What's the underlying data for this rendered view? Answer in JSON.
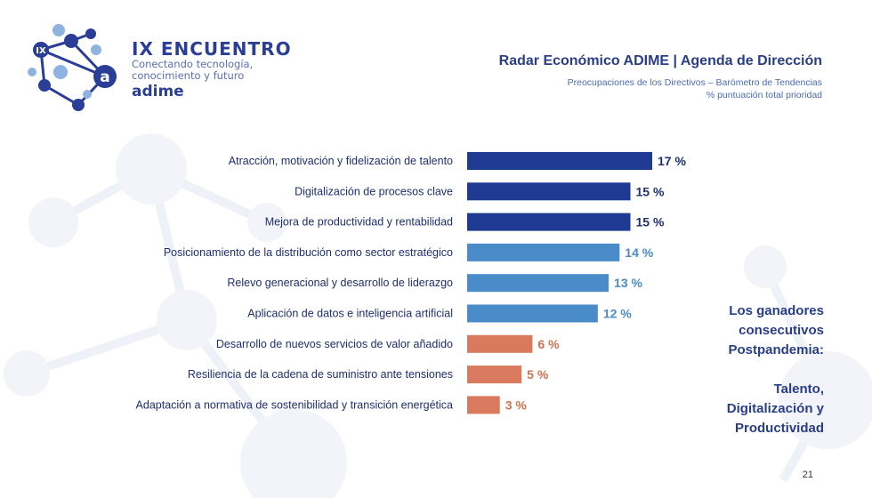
{
  "event": {
    "logo_badge": "IX",
    "logo_letter": "a",
    "title": "IX ENCUENTRO",
    "subtitle_line1": "Conectando tecnología,",
    "subtitle_line2": "conocimiento y futuro",
    "brand": "adime"
  },
  "header": {
    "title": "Radar Económico ADIME | Agenda de Dirección",
    "subtitle_line1": "Preocupaciones de los Directivos – Barómetro de Tendencias",
    "subtitle_line2": "% puntuación total prioridad"
  },
  "chart_data": {
    "type": "bar",
    "orientation": "horizontal",
    "categories": [
      "Atracción, motivación y fidelización de talento",
      "Digitalización de procesos clave",
      "Mejora de productividad y rentabilidad",
      "Posicionamiento de la distribución como sector estratégico",
      "Relevo generacional y desarrollo de liderazgo",
      "Aplicación de datos e inteligencia artificial",
      "Desarrollo de nuevos servicios de valor añadido",
      "Resiliencia de la cadena de suministro ante tensiones",
      "Adaptación a normativa de sostenibilidad y transición energética"
    ],
    "values": [
      17,
      15,
      15,
      14,
      13,
      12,
      6,
      5,
      3
    ],
    "value_labels": [
      "17 %",
      "15 %",
      "15 %",
      "14 %",
      "13 %",
      "12 %",
      "6 %",
      "5 %",
      "3 %"
    ],
    "bar_colors": [
      "#1f3a93",
      "#1f3a93",
      "#1f3a93",
      "#4a8bc9",
      "#4a8bc9",
      "#4a8bc9",
      "#d97a5e",
      "#d97a5e",
      "#d97a5e"
    ],
    "label_colors": [
      "#1f2f70",
      "#1f2f70",
      "#1f2f70",
      "#4a8bc9",
      "#4a8bc9",
      "#4a8bc9",
      "#d0704f",
      "#d0704f",
      "#d0704f"
    ],
    "xlim": [
      0,
      17
    ],
    "grid": false,
    "legend": "none"
  },
  "callout": {
    "line1": "Los ganadores",
    "line2": "consecutivos",
    "line3": "Postpandemia:",
    "line4": "Talento,",
    "line5": "Digitalización y",
    "line6": "Productividad"
  },
  "page_number": "21",
  "colors": {
    "navy": "#1f3a93",
    "medium_blue": "#4a8bc9",
    "coral": "#d97a5e",
    "title_blue": "#2a3e88"
  }
}
